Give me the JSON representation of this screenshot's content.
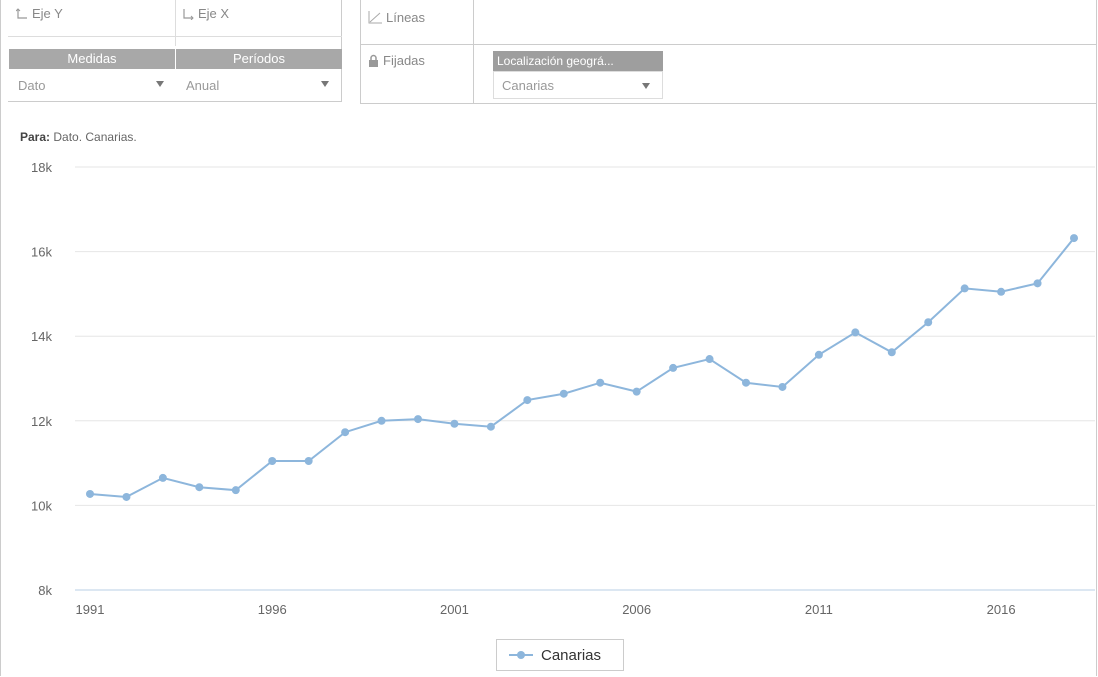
{
  "toolbar": {
    "y_axis_label": "Eje Y",
    "x_axis_label": "Eje X",
    "lines_label": "Líneas",
    "fixed_label": "Fijadas",
    "measures_header": "Medidas",
    "measures_value": "Dato",
    "periods_header": "Períodos",
    "periods_value": "Anual",
    "location_header": "Localización geográ...",
    "location_value": "Canarias"
  },
  "subtitle": {
    "prefix": "Para:",
    "text": "Dato. Canarias."
  },
  "colors": {
    "series": "#8db6dc",
    "header_bg": "#a8a8a8"
  },
  "chart_data": {
    "type": "line",
    "x": [
      1991,
      1992,
      1993,
      1994,
      1995,
      1996,
      1997,
      1998,
      1999,
      2000,
      2001,
      2002,
      2003,
      2004,
      2005,
      2006,
      2007,
      2008,
      2009,
      2010,
      2011,
      2012,
      2013,
      2014,
      2015,
      2016,
      2017,
      2018
    ],
    "series": [
      {
        "name": "Canarias",
        "values": [
          10270,
          10200,
          10650,
          10430,
          10360,
          11050,
          11050,
          11730,
          12000,
          12040,
          11930,
          11860,
          12490,
          12640,
          12900,
          12690,
          13250,
          13460,
          12900,
          12800,
          13560,
          14090,
          13620,
          14330,
          15130,
          15050,
          15250,
          16320
        ]
      }
    ],
    "ylim": [
      8000,
      18000
    ],
    "yticks": [
      8000,
      10000,
      12000,
      14000,
      16000,
      18000
    ],
    "ytick_labels": [
      "8k",
      "10k",
      "12k",
      "14k",
      "16k",
      "18k"
    ],
    "xticks": [
      1991,
      1996,
      2001,
      2006,
      2011,
      2016
    ],
    "grid": true,
    "legend_position": "bottom-center"
  }
}
